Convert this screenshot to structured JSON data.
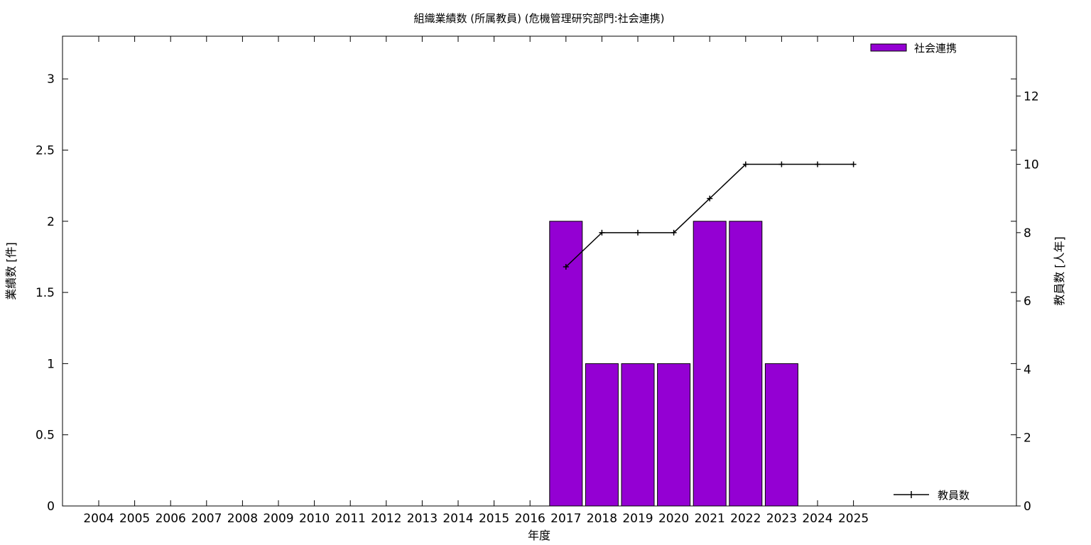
{
  "chart_data": {
    "type": "bar",
    "title": "組織業績数 (所属教員) (危機管理研究部門:社会連携)",
    "xlabel": "年度",
    "ylabel": "業績数 [件]",
    "y2label": "教員数 [人年]",
    "categories": [
      "2004",
      "2005",
      "2006",
      "2007",
      "2008",
      "2009",
      "2010",
      "2011",
      "2012",
      "2013",
      "2014",
      "2015",
      "2016",
      "2017",
      "2018",
      "2019",
      "2020",
      "2021",
      "2022",
      "2023",
      "2024",
      "2025"
    ],
    "ylim": [
      0,
      3.3
    ],
    "y2lim": [
      0,
      13.75
    ],
    "yticks": [
      "0",
      "0.5",
      "1",
      "1.5",
      "2",
      "2.5",
      "3"
    ],
    "y2ticks": [
      "0",
      "2",
      "4",
      "6",
      "8",
      "10",
      "12"
    ],
    "grid": false,
    "bar_series": {
      "name": "社会連携",
      "color": "#9400d3",
      "values": [
        0,
        0,
        0,
        0,
        0,
        0,
        0,
        0,
        0,
        0,
        0,
        0,
        0,
        2,
        1,
        1,
        1,
        2,
        2,
        1,
        0,
        0
      ]
    },
    "line_series": {
      "name": "教員数",
      "color": "#000000",
      "axis": "right",
      "values": [
        null,
        null,
        null,
        null,
        null,
        null,
        null,
        null,
        null,
        null,
        null,
        null,
        null,
        7,
        8,
        8,
        8,
        9,
        10,
        10,
        10,
        10
      ]
    },
    "legend_bar_position": "top-right",
    "legend_line_position": "bottom-right"
  }
}
